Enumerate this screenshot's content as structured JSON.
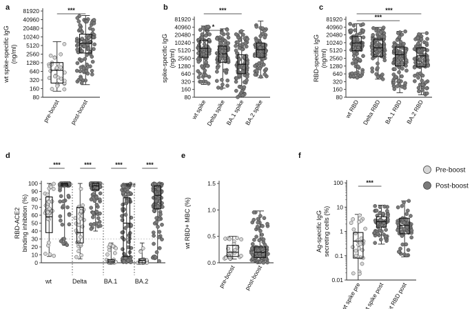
{
  "legend": [
    {
      "label": "Pre-boost",
      "color": "#d6d6d6"
    },
    {
      "label": "Post-boost",
      "color": "#7a7a7a"
    }
  ],
  "chart_data": [
    {
      "panel": "a",
      "type": "scatter",
      "scale": "log2",
      "ylabel_lines": [
        "wt spike-specific IgG",
        "(ng/ml)"
      ],
      "yticks": [
        "80",
        "160",
        "320",
        "640",
        "1280",
        "2560",
        "5120",
        "10240",
        "20480",
        "40960",
        "81920"
      ],
      "categories": [
        "pre-boost",
        "post-boost"
      ],
      "groups": [
        {
          "median": 700,
          "q1": 250,
          "q3": 1300,
          "min": 130,
          "max": 7000,
          "fill": "light",
          "n": 28
        },
        {
          "median": 6200,
          "q1": 2800,
          "q3": 12800,
          "min": 220,
          "max": 57000,
          "fill": "dark",
          "n": 100
        }
      ],
      "significance": [
        {
          "from": 0,
          "to": 1,
          "label": "***"
        }
      ]
    },
    {
      "panel": "b",
      "type": "scatter",
      "scale": "log2",
      "ylabel_lines": [
        "spike-specific IgG",
        "(ng/ml)"
      ],
      "yticks": [
        "80",
        "160",
        "320",
        "640",
        "1280",
        "2560",
        "5120",
        "10240",
        "20480",
        "40960",
        "81920"
      ],
      "categories": [
        "wt spike",
        "Delta spike",
        "BA.1 spike",
        "BA.2 spike"
      ],
      "groups": [
        {
          "median": 6200,
          "q1": 2800,
          "q3": 12800,
          "min": 250,
          "max": 45000,
          "fill": "dark",
          "n": 90
        },
        {
          "median": 3800,
          "q1": 1800,
          "q3": 7500,
          "min": 180,
          "max": 35000,
          "fill": "dark",
          "n": 90
        },
        {
          "median": 1500,
          "q1": 650,
          "q3": 3500,
          "min": 80,
          "max": 30000,
          "fill": "dark",
          "n": 90
        },
        {
          "median": 5500,
          "q1": 2800,
          "q3": 10000,
          "min": 450,
          "max": 70000,
          "fill": "dark",
          "n": 90
        }
      ],
      "significance": [
        {
          "from": 0,
          "to": 1,
          "label": "*"
        },
        {
          "from": 0,
          "to": 2,
          "label": "***"
        }
      ]
    },
    {
      "panel": "c",
      "type": "scatter",
      "scale": "log2",
      "ylabel_lines": [
        "RBD-specific IgG",
        "(ng/ml)"
      ],
      "yticks": [
        "80",
        "160",
        "320",
        "640",
        "1280",
        "2560",
        "5120",
        "10240",
        "20480",
        "40960",
        "81920"
      ],
      "categories": [
        "wt RBD",
        "Delta RBD",
        "BA.1 RBD",
        "BA.2 RBD"
      ],
      "groups": [
        {
          "median": 10000,
          "q1": 5000,
          "q3": 18000,
          "min": 450,
          "max": 55000,
          "fill": "dark",
          "n": 90
        },
        {
          "median": 6500,
          "q1": 3000,
          "q3": 14000,
          "min": 400,
          "max": 40000,
          "fill": "dark",
          "n": 90
        },
        {
          "median": 3500,
          "q1": 1300,
          "q3": 7000,
          "min": 120,
          "max": 28000,
          "fill": "dark",
          "n": 90
        },
        {
          "median": 3200,
          "q1": 1200,
          "q3": 6500,
          "min": 100,
          "max": 24000,
          "fill": "dark",
          "n": 90
        }
      ],
      "significance": [
        {
          "from": 0,
          "to": 2,
          "label": "***"
        },
        {
          "from": 0,
          "to": 3,
          "label": "***"
        }
      ]
    },
    {
      "panel": "d",
      "type": "scatter",
      "scale": "linear",
      "ylabel_lines": [
        "RBD-ACE2",
        "binding inhibition (%)"
      ],
      "yticks": [
        "0",
        "10",
        "20",
        "30",
        "40",
        "50",
        "60",
        "70",
        "80",
        "90",
        "100"
      ],
      "ylim": [
        0,
        100
      ],
      "threshold": 30,
      "group_labels": [
        "wt",
        "Delta",
        "BA.1",
        "BA.2"
      ],
      "groups": [
        {
          "median": 58,
          "q1": 38,
          "q3": 83,
          "min": 8,
          "max": 100,
          "fill": "light",
          "n": 28
        },
        {
          "median": 99,
          "q1": 97,
          "q3": 100,
          "min": 22,
          "max": 100,
          "fill": "dark",
          "n": 100
        },
        {
          "median": 38,
          "q1": 25,
          "q3": 70,
          "min": 5,
          "max": 100,
          "fill": "light",
          "n": 28
        },
        {
          "median": 97,
          "q1": 92,
          "q3": 100,
          "min": 40,
          "max": 100,
          "fill": "dark",
          "n": 100
        },
        {
          "median": 2,
          "q1": 0,
          "q3": 4,
          "min": 0,
          "max": 25,
          "fill": "light",
          "n": 28
        },
        {
          "median": 50,
          "q1": 8,
          "q3": 82,
          "min": 0,
          "max": 100,
          "fill": "dark",
          "n": 100
        },
        {
          "median": 3,
          "q1": 0,
          "q3": 5,
          "min": 0,
          "max": 25,
          "fill": "light",
          "n": 28
        },
        {
          "median": 85,
          "q1": 68,
          "q3": 97,
          "min": 0,
          "max": 100,
          "fill": "dark",
          "n": 100
        }
      ],
      "significance": [
        {
          "from": 0,
          "to": 1,
          "label": "***"
        },
        {
          "from": 2,
          "to": 3,
          "label": "***"
        },
        {
          "from": 4,
          "to": 5,
          "label": "***"
        },
        {
          "from": 6,
          "to": 7,
          "label": "***"
        }
      ],
      "annotation": {
        "group": 5,
        "label": "###"
      }
    },
    {
      "panel": "e",
      "type": "scatter",
      "scale": "linear",
      "ylabel_lines": [
        "wt RBD+ MBC (%)"
      ],
      "yticks": [
        "0.0",
        "0.5",
        "1.0",
        "1.5"
      ],
      "ylim": [
        0,
        1.5
      ],
      "categories": [
        "pre-boost",
        "post-boost"
      ],
      "groups": [
        {
          "median": 0.2,
          "q1": 0.12,
          "q3": 0.33,
          "min": 0.07,
          "max": 0.5,
          "fill": "light",
          "n": 24
        },
        {
          "median": 0.2,
          "q1": 0.1,
          "q3": 0.3,
          "min": 0.0,
          "max": 0.98,
          "fill": "dark",
          "n": 100
        }
      ],
      "significance": []
    },
    {
      "panel": "f",
      "type": "scatter",
      "scale": "log10",
      "ylabel_lines": [
        "Ag-specific IgG",
        "secreting cells (%)"
      ],
      "yticks": [
        "0.01",
        "0.1",
        "1",
        "10",
        "100"
      ],
      "categories": [
        "wt spike pre",
        "wt spike post",
        "wt RBD post"
      ],
      "groups": [
        {
          "median": 0.4,
          "q1": 0.08,
          "q3": 0.9,
          "min": 0.01,
          "max": 5,
          "fill": "light",
          "n": 28
        },
        {
          "median": 2.5,
          "q1": 1.5,
          "q3": 4,
          "min": 0.3,
          "max": 12,
          "fill": "dark",
          "n": 60
        },
        {
          "median": 1.8,
          "q1": 0.8,
          "q3": 3.5,
          "min": 0.09,
          "max": 18,
          "fill": "dark",
          "n": 60
        }
      ],
      "significance": [
        {
          "from": 0,
          "to": 1,
          "label": "***"
        }
      ]
    }
  ]
}
